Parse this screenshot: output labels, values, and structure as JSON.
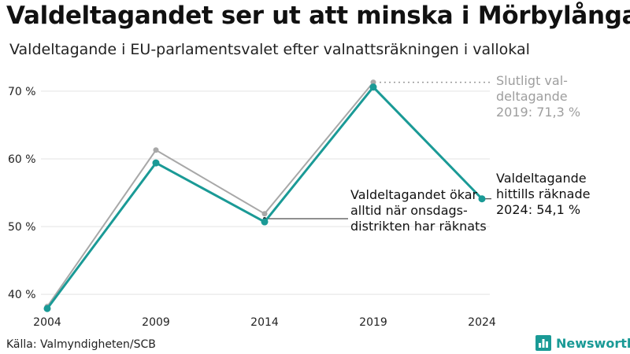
{
  "header": {
    "title": "Valdeltagandet ser ut att minska i Mörbylånga",
    "subtitle": "Valdeltagande i EU-parlamentsvalet efter valnattsräkningen i vallokal"
  },
  "footer": {
    "source": "Källa: Valmyndigheten/SCB",
    "brand": "Newsworthy"
  },
  "annotations": {
    "final_2019": [
      "Slutligt val-",
      "deltagande",
      "2019: 71,3 %"
    ],
    "counted_2024": [
      "Valdeltagande",
      "hittills räknade",
      "2024: 54,1 %"
    ],
    "wednesday_note": [
      "Valdeltagandet ökar",
      "alltid när onsdags-",
      "distrikten har räknats"
    ]
  },
  "colors": {
    "counted_series": "#1a9a96",
    "final_series": "#a8a8a8",
    "grid": "#e3e3e3",
    "brand": "#1a9a96"
  },
  "icons": {
    "brand_logo": "bar-chart-logo-icon"
  },
  "chart_data": {
    "type": "line",
    "title": "Valdeltagandet ser ut att minska i Mörbylånga",
    "subtitle": "Valdeltagande i EU-parlamentsvalet efter valnattsräkningen i vallokal",
    "x": [
      2004,
      2009,
      2014,
      2019,
      2024
    ],
    "x_tick_labels": [
      "2004",
      "2009",
      "2014",
      "2019",
      "2024"
    ],
    "y_ticks": [
      40,
      50,
      60,
      70
    ],
    "y_tick_labels": [
      "40 %",
      "50 %",
      "60 %",
      "70 %"
    ],
    "ylim": [
      37,
      73
    ],
    "grid": true,
    "series": [
      {
        "key": "final",
        "values": [
          38.2,
          61.3,
          51.9,
          71.3,
          null
        ]
      },
      {
        "key": "counted",
        "values": [
          37.9,
          59.4,
          50.7,
          70.6,
          54.1
        ]
      }
    ]
  }
}
